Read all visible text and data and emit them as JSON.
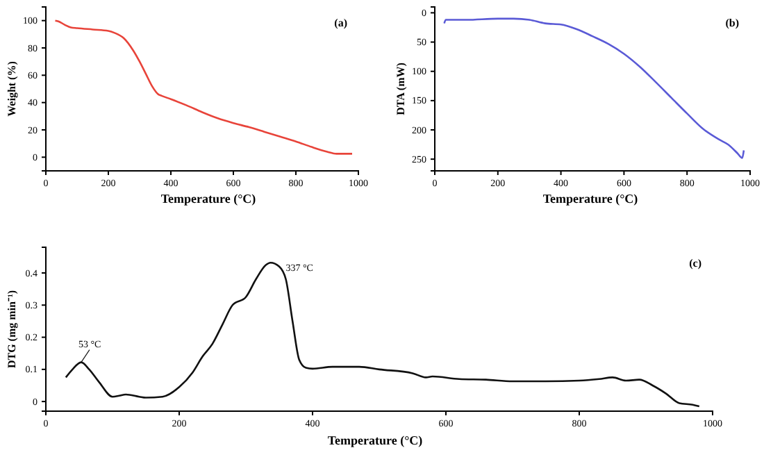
{
  "chart_data": [
    {
      "type": "line",
      "xlabel": "Temperature (°C)",
      "ylabel": "Weight (%)",
      "annotations": [
        "(a)"
      ],
      "xlim": [
        0,
        1000
      ],
      "xticks": [
        0,
        200,
        400,
        600,
        800,
        1000
      ],
      "ylim": [
        -10,
        110
      ],
      "yticks": [
        0,
        20,
        40,
        60,
        80,
        100
      ],
      "series": [
        {
          "color": "#e8443a",
          "x": [
            30,
            40,
            60,
            80,
            100,
            150,
            200,
            220,
            250,
            280,
            300,
            320,
            340,
            360,
            370,
            400,
            450,
            500,
            550,
            600,
            650,
            700,
            750,
            800,
            850,
            900,
            930,
            950,
            980
          ],
          "values": [
            100,
            99.5,
            97,
            95,
            94.5,
            93.5,
            92.5,
            91,
            87,
            78,
            70,
            61,
            52,
            46,
            45,
            42.5,
            38,
            33,
            28.5,
            25,
            22,
            18.5,
            15,
            11.5,
            7.5,
            4,
            2.5,
            2.5,
            2.5
          ]
        }
      ]
    },
    {
      "type": "line",
      "xlabel": "Temperature (°C)",
      "ylabel": "DTA (mW)",
      "annotations": [
        "(b)"
      ],
      "xlim": [
        0,
        1000
      ],
      "xticks": [
        0,
        200,
        400,
        600,
        800,
        1000
      ],
      "ylim": [
        270,
        -10
      ],
      "yticks": [
        0,
        50,
        100,
        150,
        200,
        250
      ],
      "series": [
        {
          "color": "#5a5ad6",
          "x": [
            30,
            35,
            40,
            100,
            200,
            250,
            300,
            350,
            400,
            450,
            500,
            550,
            600,
            650,
            700,
            750,
            800,
            850,
            900,
            930,
            960,
            975,
            980
          ],
          "values": [
            18,
            12,
            12,
            12,
            10,
            10,
            12,
            18,
            20,
            28,
            40,
            53,
            70,
            92,
            118,
            145,
            172,
            198,
            216,
            225,
            240,
            248,
            235
          ]
        }
      ]
    },
    {
      "type": "line",
      "xlabel": "Temperature (°C)",
      "ylabel": "DTG (mg min⁻¹)",
      "annotations": [
        "(c)",
        {
          "text": "53 °C",
          "x": 53,
          "y": 0.122
        },
        {
          "text": "337 °C",
          "x": 337,
          "y": 0.432
        }
      ],
      "xlim": [
        0,
        1000
      ],
      "xticks": [
        0,
        200,
        400,
        600,
        800,
        1000
      ],
      "ylim": [
        -0.03,
        0.48
      ],
      "yticks": [
        0.0,
        0.1,
        0.2,
        0.3,
        0.4
      ],
      "series": [
        {
          "color": "#111111",
          "x": [
            30,
            40,
            53,
            65,
            80,
            100,
            110,
            120,
            140,
            150,
            175,
            200,
            220,
            235,
            250,
            265,
            280,
            300,
            315,
            330,
            337,
            350,
            360,
            370,
            380,
            390,
            400,
            430,
            470,
            500,
            550,
            570,
            580,
            620,
            660,
            700,
            750,
            800,
            830,
            850,
            870,
            890,
            910,
            930,
            950,
            970,
            980
          ],
          "values": [
            0.075,
            0.1,
            0.122,
            0.1,
            0.06,
            0.015,
            0.018,
            0.022,
            0.015,
            0.012,
            0.015,
            0.045,
            0.09,
            0.14,
            0.18,
            0.24,
            0.3,
            0.325,
            0.38,
            0.425,
            0.432,
            0.42,
            0.38,
            0.25,
            0.13,
            0.105,
            0.102,
            0.108,
            0.108,
            0.1,
            0.088,
            0.075,
            0.078,
            0.07,
            0.068,
            0.063,
            0.063,
            0.065,
            0.07,
            0.075,
            0.065,
            0.068,
            0.05,
            0.025,
            -0.005,
            -0.01,
            -0.015
          ]
        }
      ]
    }
  ]
}
